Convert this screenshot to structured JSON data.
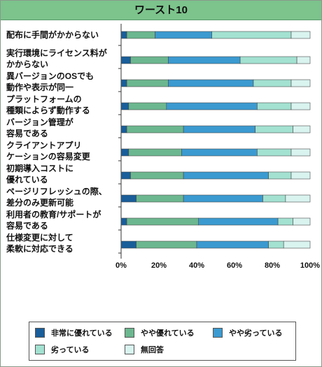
{
  "header": {
    "title": "ワースト10"
  },
  "colors": {
    "very_inferior": "#1a5e9a",
    "somewhat_superior": "#6cb78f",
    "somewhat_inferior": "#3b9ad0",
    "inferior": "#a3e1d1",
    "no_answer": "#d9f3ef",
    "title_bg": "#7cc38c"
  },
  "chart_data": {
    "type": "bar",
    "orientation": "horizontal",
    "stacked": true,
    "title": "ワースト10",
    "categories": [
      "配布に手間がかからない",
      "実行環境にライセンス料が\nかからない",
      "異バージョンのOSでも\n動作や表示が同一",
      "プラットフォームの\n種類によらず動作する",
      "バージョン管理が\n容易である",
      "クライアントアプリ\nケーションの容易変更",
      "初期導入コストに\n優れている",
      "ページリフレッシュの際、\n差分のみ更新可能",
      "利用者の教育/サポートが\n容易である",
      "仕様変更に対して\n柔軟に対応できる"
    ],
    "series": [
      {
        "name": "非常に優れている",
        "color_key": "very_inferior",
        "values": [
          3,
          5,
          3,
          4,
          3,
          4,
          5,
          8,
          3,
          8
        ]
      },
      {
        "name": "やや優れている",
        "color_key": "somewhat_superior",
        "values": [
          15,
          20,
          22,
          20,
          30,
          28,
          28,
          25,
          38,
          32
        ]
      },
      {
        "name": "やや劣っている",
        "color_key": "somewhat_inferior",
        "values": [
          30,
          38,
          45,
          48,
          38,
          40,
          45,
          42,
          42,
          38
        ]
      },
      {
        "name": "劣っている",
        "color_key": "inferior",
        "values": [
          42,
          30,
          20,
          18,
          20,
          18,
          12,
          12,
          8,
          8
        ]
      },
      {
        "name": "無回答",
        "color_key": "no_answer",
        "values": [
          10,
          7,
          10,
          10,
          9,
          10,
          10,
          13,
          9,
          14
        ]
      }
    ],
    "x_ticks": [
      "0%",
      "20%",
      "40%",
      "60%",
      "80%",
      "100%"
    ],
    "xlim": [
      0,
      100
    ],
    "legend_position": "bottom",
    "grid": false
  },
  "legend": {
    "items": [
      {
        "label": "非常に優れている",
        "color_key": "very_inferior"
      },
      {
        "label": "やや優れている",
        "color_key": "somewhat_superior"
      },
      {
        "label": "やや劣っている",
        "color_key": "somewhat_inferior"
      },
      {
        "label": "劣っている",
        "color_key": "inferior"
      },
      {
        "label": "無回答",
        "color_key": "no_answer"
      }
    ]
  }
}
